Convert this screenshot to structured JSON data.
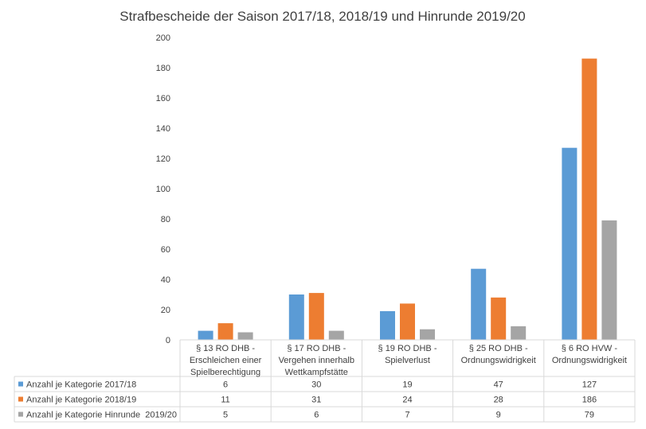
{
  "chart_data": {
    "type": "bar",
    "title": "Strafbescheide der Saison 2017/18, 2018/19 und Hinrunde 2019/20",
    "categories": [
      [
        "§ 13 RO DHB -",
        "Erschleichen einer",
        "Spielberechtigung"
      ],
      [
        "§ 17 RO DHB -",
        "Vergehen innerhalb",
        "Wettkampfstätte"
      ],
      [
        "§ 19 RO DHB -",
        "Spielverlust"
      ],
      [
        "§ 25 RO DHB -",
        "Ordnungswidrigkeit"
      ],
      [
        "§ 6 RO HVW -",
        "Ordnungswidrigkeit"
      ]
    ],
    "series": [
      {
        "name": "Anzahl je Kategorie 2017/18",
        "color": "#5B9BD5",
        "values": [
          6,
          30,
          19,
          47,
          127
        ]
      },
      {
        "name": "Anzahl je Kategorie 2018/19",
        "color": "#ED7D31",
        "values": [
          11,
          31,
          24,
          28,
          186
        ]
      },
      {
        "name": "Anzahl je Kategorie Hinrunde  2019/20",
        "color": "#A5A5A5",
        "values": [
          5,
          6,
          7,
          9,
          79
        ]
      }
    ],
    "ylim": [
      0,
      200
    ],
    "yticks": [
      0,
      20,
      40,
      60,
      80,
      100,
      120,
      140,
      160,
      180,
      200
    ],
    "grid": false,
    "legend": "data-table"
  }
}
